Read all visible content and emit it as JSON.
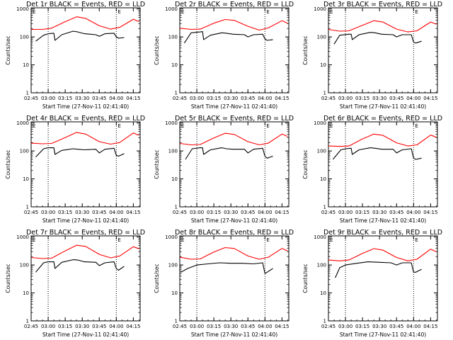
{
  "figure": {
    "background": "#ffffff",
    "colors": {
      "events": "#000000",
      "lld": "#ff0000",
      "axes": "#000000"
    }
  },
  "chart_data": [
    {
      "type": "line",
      "title": "Det 1r BLACK = Events, RED = LLD",
      "xlabel": "Start Time (27-Nov-11 02:41:40)",
      "ylabel": "Counts/sec",
      "xticks": [
        "02:45",
        "03:00",
        "03:15",
        "03:30",
        "03:45",
        "04:00",
        "04:15"
      ],
      "yticks": [
        "1",
        "10",
        "100",
        "1000"
      ],
      "xlim": [
        "02:45",
        "04:21"
      ],
      "ylim": [
        1,
        1100
      ],
      "yscale": "log",
      "markers": [
        "E",
        "E"
      ],
      "dotted_lines_x": [
        "03:00",
        "04:00"
      ],
      "series": [
        {
          "x": [
            "02:45",
            "02:55",
            "03:03",
            "03:15",
            "03:25",
            "03:33",
            "03:45",
            "03:55",
            "04:03",
            "04:15",
            "04:20"
          ],
          "values": [
            185,
            185,
            205,
            350,
            525,
            460,
            250,
            190,
            220,
            430,
            350
          ]
        },
        {
          "x": [
            "02:49",
            "02:56",
            "03:00",
            "03:05",
            "03:06",
            "03:12",
            "03:22",
            "03:26",
            "03:32",
            "03:42",
            "03:45",
            "03:50",
            "03:58",
            "04:00",
            "04:02",
            "04:07"
          ],
          "values": [
            70,
            115,
            130,
            135,
            75,
            120,
            160,
            150,
            130,
            120,
            105,
            130,
            135,
            100,
            90,
            95
          ]
        }
      ]
    },
    {
      "type": "line",
      "title": "Det 2r BLACK = Events, RED = LLD",
      "xlabel": "Start Time (27-Nov-11 02:41:40)",
      "ylabel": "Counts/sec",
      "xticks": [
        "02:45",
        "03:00",
        "03:15",
        "03:30",
        "03:45",
        "04:00",
        "04:15"
      ],
      "yticks": [
        "1",
        "10",
        "100",
        "1000"
      ],
      "xlim": [
        "02:45",
        "04:21"
      ],
      "ylim": [
        1,
        1100
      ],
      "yscale": "log",
      "markers": [
        "E",
        "E"
      ],
      "dotted_lines_x": [
        "03:00",
        "04:00"
      ],
      "series": [
        {
          "x": [
            "02:45",
            "02:55",
            "03:03",
            "03:15",
            "03:25",
            "03:33",
            "03:45",
            "03:55",
            "04:03",
            "04:15",
            "04:20"
          ],
          "values": [
            205,
            185,
            190,
            310,
            420,
            390,
            240,
            175,
            210,
            380,
            310
          ]
        },
        {
          "x": [
            "02:49",
            "02:55",
            "03:03",
            "03:05",
            "03:06",
            "03:12",
            "03:22",
            "03:26",
            "03:32",
            "03:42",
            "03:45",
            "03:50",
            "03:58",
            "04:00",
            "04:02",
            "04:07"
          ],
          "values": [
            60,
            140,
            150,
            155,
            80,
            115,
            140,
            135,
            125,
            120,
            100,
            120,
            125,
            85,
            75,
            80
          ]
        }
      ]
    },
    {
      "type": "line",
      "title": "Det 3r BLACK = Events, RED = LLD",
      "xlabel": "Start Time (27-Nov-11 02:41:40)",
      "ylabel": "Counts/sec",
      "xticks": [
        "02:45",
        "03:00",
        "03:15",
        "03:30",
        "03:45",
        "04:00",
        "04:15"
      ],
      "yticks": [
        "1",
        "10",
        "100",
        "1000"
      ],
      "xlim": [
        "02:45",
        "04:21"
      ],
      "ylim": [
        1,
        1100
      ],
      "yscale": "log",
      "markers": [
        "E",
        "E"
      ],
      "dotted_lines_x": [
        "03:00",
        "04:00"
      ],
      "series": [
        {
          "x": [
            "02:45",
            "02:55",
            "03:03",
            "03:15",
            "03:25",
            "03:33",
            "03:45",
            "03:55",
            "04:03",
            "04:15",
            "04:20"
          ],
          "values": [
            185,
            160,
            165,
            260,
            380,
            340,
            190,
            150,
            165,
            340,
            285
          ]
        },
        {
          "x": [
            "02:50",
            "02:55",
            "03:03",
            "03:05",
            "03:06",
            "03:12",
            "03:22",
            "03:26",
            "03:32",
            "03:42",
            "03:45",
            "03:50",
            "03:58",
            "04:00",
            "04:02",
            "04:07"
          ],
          "values": [
            55,
            115,
            125,
            125,
            80,
            120,
            145,
            140,
            125,
            120,
            100,
            120,
            120,
            65,
            60,
            70
          ]
        }
      ]
    },
    {
      "type": "line",
      "title": "Det 4r BLACK = Events, RED = LLD",
      "xlabel": "Start Time (27-Nov-11 02:41:40)",
      "ylabel": "Counts/sec",
      "xticks": [
        "02:45",
        "03:00",
        "03:15",
        "03:30",
        "03:45",
        "04:00",
        "04:15"
      ],
      "yticks": [
        "1",
        "10",
        "100",
        "1000"
      ],
      "xlim": [
        "02:45",
        "04:21"
      ],
      "ylim": [
        1,
        1100
      ],
      "yscale": "log",
      "markers": [
        "E",
        "E"
      ],
      "dotted_lines_x": [
        "03:00",
        "04:00"
      ],
      "series": [
        {
          "x": [
            "02:45",
            "02:55",
            "03:03",
            "03:15",
            "03:25",
            "03:33",
            "03:45",
            "03:55",
            "04:03",
            "04:15",
            "04:20"
          ],
          "values": [
            190,
            180,
            185,
            300,
            460,
            400,
            215,
            175,
            200,
            440,
            360
          ]
        },
        {
          "x": [
            "02:49",
            "02:56",
            "03:00",
            "03:05",
            "03:06",
            "03:12",
            "03:22",
            "03:26",
            "03:32",
            "03:42",
            "03:45",
            "03:50",
            "03:58",
            "04:00",
            "04:02",
            "04:07"
          ],
          "values": [
            60,
            120,
            130,
            130,
            75,
            105,
            120,
            115,
            110,
            115,
            85,
            115,
            125,
            70,
            65,
            80
          ]
        }
      ]
    },
    {
      "type": "line",
      "title": "Det 5r BLACK = Events, RED = LLD",
      "xlabel": "Start Time (27-Nov-11 02:41:40)",
      "ylabel": "Counts/sec",
      "xticks": [
        "02:45",
        "03:00",
        "03:15",
        "03:30",
        "03:45",
        "04:00",
        "04:15"
      ],
      "yticks": [
        "1",
        "10",
        "100",
        "1000"
      ],
      "xlim": [
        "02:45",
        "04:21"
      ],
      "ylim": [
        1,
        1100
      ],
      "yscale": "log",
      "markers": [
        "E",
        "E"
      ],
      "dotted_lines_x": [
        "03:00",
        "04:00"
      ],
      "series": [
        {
          "x": [
            "02:45",
            "02:55",
            "03:03",
            "03:15",
            "03:25",
            "03:33",
            "03:45",
            "03:55",
            "04:03",
            "04:15",
            "04:20"
          ],
          "values": [
            185,
            165,
            170,
            290,
            430,
            390,
            215,
            165,
            190,
            400,
            330
          ]
        },
        {
          "x": [
            "02:50",
            "02:56",
            "03:03",
            "03:05",
            "03:06",
            "03:12",
            "03:22",
            "03:26",
            "03:32",
            "03:42",
            "03:45",
            "03:50",
            "03:58",
            "04:00",
            "04:02",
            "04:07"
          ],
          "values": [
            50,
            120,
            130,
            130,
            75,
            110,
            130,
            120,
            115,
            115,
            85,
            115,
            125,
            65,
            55,
            65
          ]
        }
      ]
    },
    {
      "type": "line",
      "title": "Det 6r BLACK = Events, RED = LLD",
      "xlabel": "Start Time (27-Nov-11 02:41:40)",
      "ylabel": "Counts/sec",
      "xticks": [
        "02:45",
        "03:00",
        "03:15",
        "03:30",
        "03:45",
        "04:00",
        "04:15"
      ],
      "yticks": [
        "1",
        "10",
        "100",
        "1000"
      ],
      "xlim": [
        "02:45",
        "04:21"
      ],
      "ylim": [
        1,
        1100
      ],
      "yscale": "log",
      "markers": [
        "E",
        "E"
      ],
      "dotted_lines_x": [
        "03:00",
        "04:00"
      ],
      "series": [
        {
          "x": [
            "02:45",
            "02:55",
            "03:03",
            "03:15",
            "03:25",
            "03:33",
            "03:45",
            "03:55",
            "04:03",
            "04:15",
            "04:20"
          ],
          "values": [
            150,
            145,
            150,
            270,
            400,
            360,
            195,
            150,
            165,
            370,
            310
          ]
        },
        {
          "x": [
            "02:49",
            "02:56",
            "03:00",
            "03:05",
            "03:06",
            "03:12",
            "03:22",
            "03:26",
            "03:32",
            "03:42",
            "03:45",
            "03:50",
            "03:58",
            "04:00",
            "04:02",
            "04:07"
          ],
          "values": [
            50,
            110,
            120,
            125,
            75,
            110,
            130,
            125,
            115,
            115,
            85,
            110,
            120,
            55,
            50,
            55
          ]
        }
      ]
    },
    {
      "type": "line",
      "title": "Det 7r BLACK = Events, RED = LLD",
      "xlabel": "Start Time (27-Nov-11 02:41:40)",
      "ylabel": "Counts/sec",
      "xticks": [
        "02:45",
        "03:00",
        "03:15",
        "03:30",
        "03:45",
        "04:00",
        "04:15"
      ],
      "yticks": [
        "1",
        "10",
        "100",
        "1000"
      ],
      "xlim": [
        "02:45",
        "04:21"
      ],
      "ylim": [
        1,
        1100
      ],
      "yscale": "log",
      "markers": [
        "E",
        "E"
      ],
      "dotted_lines_x": [
        "03:00",
        "04:00"
      ],
      "series": [
        {
          "x": [
            "02:45",
            "02:55",
            "03:03",
            "03:15",
            "03:25",
            "03:33",
            "03:45",
            "03:55",
            "04:03",
            "04:15",
            "04:20"
          ],
          "values": [
            185,
            170,
            175,
            320,
            510,
            460,
            240,
            180,
            210,
            450,
            380
          ]
        },
        {
          "x": [
            "02:49",
            "02:56",
            "03:00",
            "03:05",
            "03:06",
            "03:12",
            "03:22",
            "03:26",
            "03:32",
            "03:42",
            "03:45",
            "03:50",
            "03:58",
            "04:00",
            "04:02",
            "04:07"
          ],
          "values": [
            55,
            120,
            130,
            130,
            75,
            125,
            155,
            150,
            130,
            125,
            95,
            120,
            130,
            75,
            65,
            90
          ]
        }
      ]
    },
    {
      "type": "line",
      "title": "Det 8r BLACK = Events, RED = LLD",
      "xlabel": "Start Time (27-Nov-11 02:41:40)",
      "ylabel": "Counts/sec",
      "xticks": [
        "02:45",
        "03:00",
        "03:15",
        "03:30",
        "03:45",
        "04:00",
        "04:15"
      ],
      "yticks": [
        "1",
        "10",
        "100",
        "1000"
      ],
      "xlim": [
        "02:45",
        "04:21"
      ],
      "ylim": [
        1,
        1100
      ],
      "yscale": "log",
      "markers": [
        "E",
        "E"
      ],
      "dotted_lines_x": [
        "03:00",
        "04:00"
      ],
      "series": [
        {
          "x": [
            "02:45",
            "02:55",
            "03:03",
            "03:15",
            "03:25",
            "03:33",
            "03:45",
            "03:55",
            "04:03",
            "04:15",
            "04:20"
          ],
          "values": [
            190,
            160,
            165,
            290,
            420,
            390,
            210,
            160,
            190,
            390,
            320
          ]
        },
        {
          "x": [
            "02:46",
            "02:52",
            "03:00",
            "03:10",
            "03:20",
            "03:30",
            "03:40",
            "03:50",
            "03:58",
            "04:00",
            "04:02",
            "04:07"
          ],
          "values": [
            55,
            75,
            100,
            110,
            120,
            115,
            115,
            110,
            120,
            50,
            55,
            75
          ]
        }
      ]
    },
    {
      "type": "line",
      "title": "Det 9r BLACK = Events, RED = LLD",
      "xlabel": "Start Time (27-Nov-11 02:41:40)",
      "ylabel": "Counts/sec",
      "xticks": [
        "02:45",
        "03:00",
        "03:15",
        "03:30",
        "03:45",
        "04:00",
        "04:15"
      ],
      "yticks": [
        "1",
        "10",
        "100",
        "1000"
      ],
      "xlim": [
        "02:45",
        "04:21"
      ],
      "ylim": [
        1,
        1100
      ],
      "yscale": "log",
      "markers": [
        "E",
        "E"
      ],
      "dotted_lines_x": [
        "03:00",
        "04:00"
      ],
      "series": [
        {
          "x": [
            "02:45",
            "02:55",
            "03:03",
            "03:15",
            "03:25",
            "03:33",
            "03:45",
            "03:55",
            "04:03",
            "04:15",
            "04:20"
          ],
          "values": [
            150,
            140,
            150,
            260,
            385,
            340,
            185,
            140,
            160,
            370,
            300
          ]
        },
        {
          "x": [
            "02:51",
            "02:55",
            "03:00",
            "03:10",
            "03:20",
            "03:30",
            "03:40",
            "03:45",
            "03:50",
            "03:58",
            "04:00",
            "04:02",
            "04:07"
          ],
          "values": [
            35,
            80,
            100,
            115,
            130,
            125,
            120,
            100,
            120,
            120,
            55,
            55,
            70
          ]
        }
      ]
    }
  ]
}
